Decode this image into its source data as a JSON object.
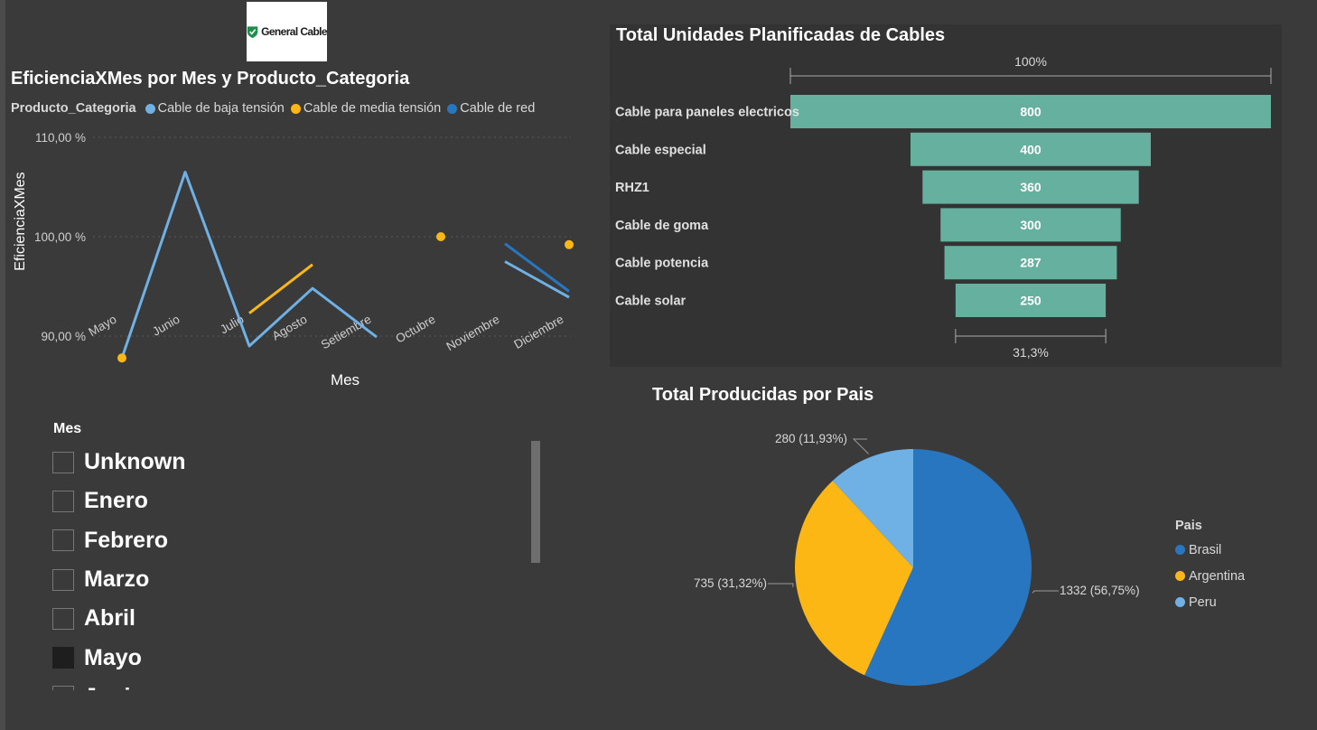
{
  "logo": {
    "text": "General Cable"
  },
  "line_chart": {
    "title": "EficienciaXMes por Mes y Producto_Categoria",
    "legend_title": "Producto_Categoria"
  },
  "funnel": {
    "title": "Total Unidades Planificadas de Cables"
  },
  "pie": {
    "title": "Total Producidas por Pais",
    "legend_title": "Pais"
  },
  "slicer": {
    "title": "Mes",
    "items": [
      {
        "label": "Unknown",
        "checked": false
      },
      {
        "label": "Enero",
        "checked": false
      },
      {
        "label": "Febrero",
        "checked": false
      },
      {
        "label": "Marzo",
        "checked": false
      },
      {
        "label": "Abril",
        "checked": false
      },
      {
        "label": "Mayo",
        "checked": true
      },
      {
        "label": "Junio",
        "checked": false
      }
    ]
  },
  "chart_data": [
    {
      "type": "line",
      "title": "EficienciaXMes por Mes y Producto_Categoria",
      "xlabel": "Mes",
      "ylabel": "EficienciaXMes",
      "legend_title": "Producto_Categoria",
      "legend_position": "top-left",
      "grid": true,
      "categories": [
        "Mayo",
        "Junio",
        "Julio",
        "Agosto",
        "Setiembre",
        "Octubre",
        "Noviembre",
        "Diciembre"
      ],
      "yticks": [
        90,
        100,
        110
      ],
      "ytick_labels": [
        "90,00 %",
        "100,00 %",
        "110,00 %"
      ],
      "ylim": [
        84,
        112
      ],
      "series": [
        {
          "name": "Cable de baja tensión",
          "color": "#6fb1e4",
          "values": [
            87.8,
            106.5,
            89,
            94.8,
            89.9,
            null,
            97.5,
            93.9
          ]
        },
        {
          "name": "Cable de media tensión",
          "color": "#fcb714",
          "values": [
            87.8,
            null,
            92.3,
            97.2,
            null,
            100,
            null,
            99.2
          ]
        },
        {
          "name": "Cable de red",
          "color": "#2876c0",
          "values": [
            null,
            null,
            null,
            null,
            null,
            null,
            99.3,
            94.5
          ]
        }
      ]
    },
    {
      "type": "funnel",
      "title": "Total Unidades Planificadas de Cables",
      "color": "#66b0a0",
      "categories": [
        "Cable para paneles electricos",
        "Cable especial",
        "RHZ1",
        "Cable de goma",
        "Cable potencia",
        "Cable solar"
      ],
      "values": [
        800,
        400,
        360,
        300,
        287,
        250
      ],
      "value_labels": [
        "800",
        "400",
        "360",
        "300",
        "287",
        "250"
      ],
      "top_label": "100%",
      "bottom_label": "31,3%"
    },
    {
      "type": "pie",
      "title": "Total Producidas por Pais",
      "legend_title": "Pais",
      "legend_position": "right",
      "slices": [
        {
          "label": "Brasil",
          "value": 1332,
          "data_label": "1332 (56,75%)",
          "color": "#2876c0"
        },
        {
          "label": "Argentina",
          "value": 735,
          "data_label": "735 (31,32%)",
          "color": "#fcb714"
        },
        {
          "label": "Peru",
          "value": 280,
          "data_label": "280 (11,93%)",
          "color": "#6fb1e4"
        }
      ]
    }
  ]
}
